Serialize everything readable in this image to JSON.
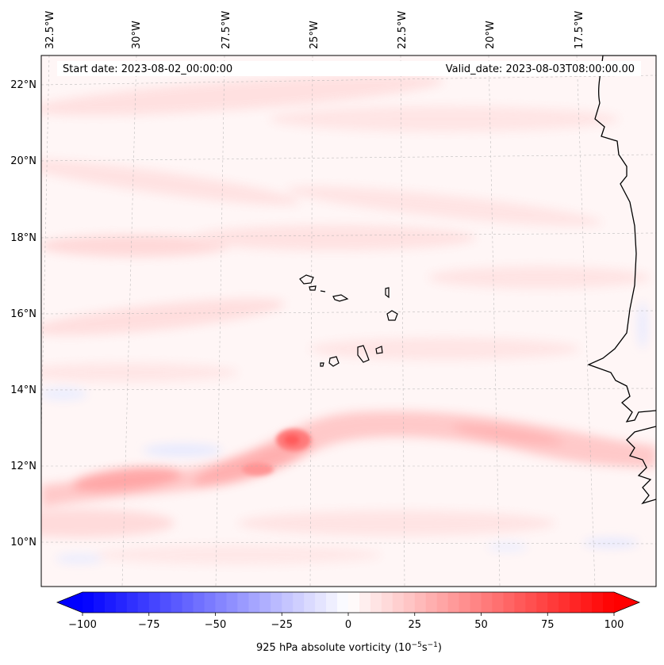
{
  "map": {
    "title_left": "Start date: 2023-08-02_00:00:00",
    "title_right": "Valid_date: 2023-08-03T08:00:00.00",
    "longitude_labels": [
      "32.5°W",
      "30°W",
      "27.5°W",
      "25°W",
      "22.5°W",
      "20°W",
      "17.5°W"
    ],
    "latitude_labels": [
      "22°N",
      "20°N",
      "18°N",
      "16°N",
      "14°N",
      "12°N",
      "10°N"
    ],
    "field": "925 hPa absolute vorticity",
    "colors": {
      "coast": "#000000",
      "grid": "#b0b0b0",
      "positive": "#ff0000",
      "negative": "#0000ff"
    }
  },
  "colorbar": {
    "label_prefix": "925 hPa absolute vorticity (10",
    "label_exp1": "−5",
    "label_mid": "s",
    "label_exp2": "−1",
    "label_suffix": ")",
    "min": -100,
    "max": 100,
    "ticks": [
      -100,
      -75,
      -50,
      -25,
      0,
      25,
      50,
      75,
      100
    ],
    "tick_labels": [
      "−100",
      "−75",
      "−50",
      "−25",
      "0",
      "25",
      "50",
      "75",
      "100"
    ],
    "levels": 48
  }
}
